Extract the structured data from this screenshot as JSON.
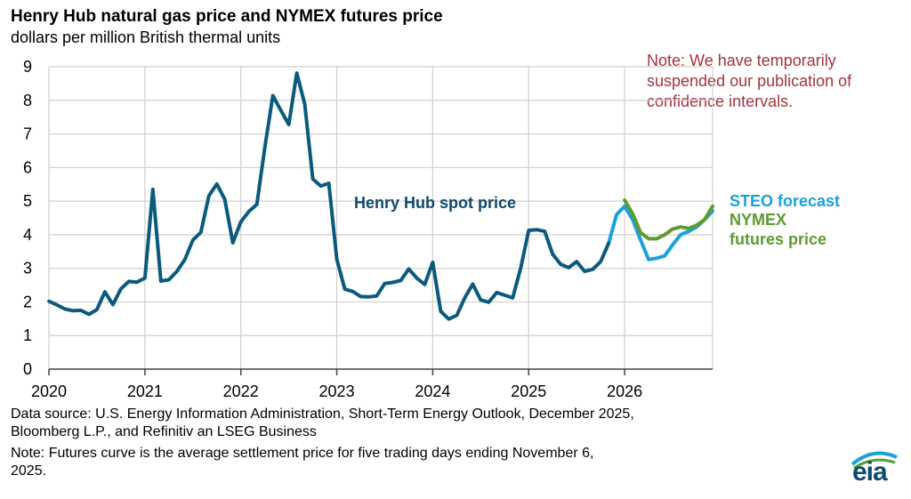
{
  "header": {
    "title": "Henry Hub natural gas price and NYMEX futures price",
    "subtitle": "dollars per million British thermal units"
  },
  "note": {
    "text": "Note: We have temporarily suspended our publication of confidence intervals."
  },
  "footer": {
    "source": "Data source: U.S. Energy Information Administration, Short-Term Energy Outlook, December 2025,",
    "source2": "Bloomberg L.P., and Refinitiv an LSEG Business",
    "note": "Note: Futures curve is the average settlement price for five trading days ending November 6,",
    "note2": "2025."
  },
  "logo": {
    "text": "eia"
  },
  "colors": {
    "spot": "#0b5a7e",
    "steo": "#1aa0dc",
    "nymex": "#5f9b2f",
    "grid": "#d0d0d0",
    "note": "#a8323e"
  },
  "chart_data": {
    "type": "line",
    "title": "Henry Hub natural gas price and NYMEX futures price",
    "ylabel": "dollars per million British thermal units",
    "ylim": [
      0,
      9
    ],
    "yticks": [
      "0",
      "1",
      "2",
      "3",
      "4",
      "5",
      "6",
      "7",
      "8",
      "9"
    ],
    "xticks": [
      "2020",
      "2021",
      "2022",
      "2023",
      "2024",
      "2025",
      "2026"
    ],
    "x_start": "2020-01",
    "x_end": "2026-12",
    "grid": true,
    "series": [
      {
        "name": "Henry Hub spot price",
        "color": "#0b5a7e",
        "start_month": 0,
        "values": [
          2.02,
          1.91,
          1.79,
          1.74,
          1.75,
          1.63,
          1.77,
          2.3,
          1.92,
          2.39,
          2.61,
          2.59,
          2.71,
          5.35,
          2.62,
          2.66,
          2.91,
          3.26,
          3.84,
          4.07,
          5.16,
          5.51,
          5.05,
          3.76,
          4.38,
          4.69,
          4.9,
          6.6,
          8.14,
          7.7,
          7.28,
          8.81,
          7.88,
          5.66,
          5.45,
          5.53,
          3.27,
          2.38,
          2.31,
          2.16,
          2.15,
          2.18,
          2.55,
          2.58,
          2.64,
          2.98,
          2.71,
          2.52,
          3.18,
          1.72,
          1.49,
          1.6,
          2.12,
          2.53,
          2.06,
          1.99,
          2.28,
          2.2,
          2.12,
          3.01,
          4.13,
          4.15,
          4.1,
          3.42,
          3.12,
          3.02,
          3.2,
          2.91,
          2.97,
          3.2,
          3.75
        ]
      },
      {
        "name": "STEO forecast",
        "color": "#1aa0dc",
        "start_month": 70,
        "values": [
          3.75,
          4.6,
          4.85,
          4.45,
          3.84,
          3.26,
          3.3,
          3.37,
          3.7,
          4.0,
          4.1,
          4.23,
          4.45,
          4.71
        ]
      },
      {
        "name": "NYMEX futures price",
        "color": "#5f9b2f",
        "start_month": 72,
        "values": [
          5.03,
          4.63,
          4.06,
          3.88,
          3.88,
          4.0,
          4.17,
          4.23,
          4.19,
          4.28,
          4.45,
          4.85
        ]
      }
    ],
    "annotations": {
      "spot_label": "Henry Hub spot price",
      "steo_label": "STEO forecast",
      "nymex_label1": "NYMEX",
      "nymex_label2": "futures price"
    }
  }
}
